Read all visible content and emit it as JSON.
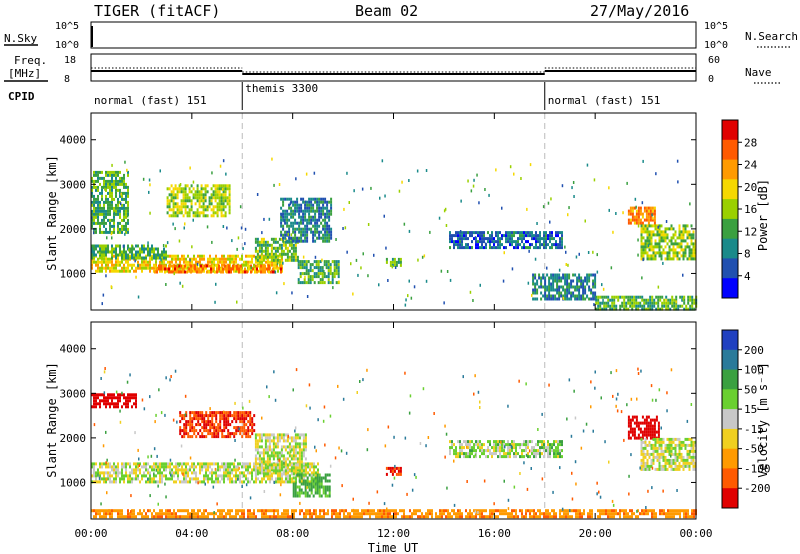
{
  "header": {
    "title": "TIGER (fitACF)",
    "beam": "Beam 02",
    "date": "27/May/2016"
  },
  "top_panels": {
    "nsky_label": "N.Sky",
    "nsky_ticks": [
      "10^5",
      "10^0"
    ],
    "nsearch_label": "N.Search",
    "nsearch_ticks": [
      "10^5",
      "10^0"
    ],
    "freq_label": "Freq.",
    "freq_unit": "[MHz]",
    "freq_ticks": [
      "18",
      "8"
    ],
    "nave_label": "Nave",
    "nave_ticks": [
      "60",
      "0"
    ],
    "cpid_label": "CPID",
    "modes": [
      {
        "label": "normal (fast) 151",
        "start": 0,
        "end": 6
      },
      {
        "label": "themis 3300",
        "start": 6,
        "end": 18
      },
      {
        "label": "normal (fast) 151",
        "start": 18,
        "end": 24
      }
    ]
  },
  "power_legend": {
    "title": "Power [dB]",
    "ticks": [
      "28",
      "24",
      "20",
      "16",
      "12",
      "8",
      "4"
    ],
    "colors": [
      "#e00000",
      "#ff5a00",
      "#ff9a00",
      "#f5d800",
      "#9ad000",
      "#3aa040",
      "#1a8a8a",
      "#2050b0",
      "#0000ff"
    ]
  },
  "velocity_legend": {
    "title": "Velocity [m s⁻¹]",
    "ticks": [
      "200",
      "100",
      "50",
      "15",
      "-15",
      "-50",
      "-100",
      "-200"
    ],
    "colors": [
      "#2040c0",
      "#2a7a9a",
      "#3aa040",
      "#6ad030",
      "#c8c8c8",
      "#f0d020",
      "#ff9a00",
      "#ff5a00",
      "#e00000"
    ]
  },
  "axes": {
    "ylabel": "Slant Range [km]",
    "yticks": [
      "4000",
      "3000",
      "2000",
      "1000"
    ],
    "xticks": [
      "00:00",
      "04:00",
      "08:00",
      "12:00",
      "16:00",
      "20:00",
      "00:00"
    ],
    "xlabel": "Time UT"
  },
  "chart_data": [
    {
      "type": "heatmap",
      "name": "Power",
      "x_range_hours": [
        0,
        24
      ],
      "y_range_km": [
        180,
        4600
      ],
      "color_range_db": [
        0,
        32
      ],
      "mode_change_hours": [
        6,
        18
      ],
      "regions": [
        {
          "t0": 0.0,
          "t1": 7.6,
          "r0": 1080,
          "r1": 1420,
          "value": 20
        },
        {
          "t0": 2.5,
          "t1": 7.5,
          "r0": 1000,
          "r1": 1200,
          "value": 26
        },
        {
          "t0": 0.0,
          "t1": 3.0,
          "r0": 1350,
          "r1": 1650,
          "value": 12
        },
        {
          "t0": 0.0,
          "t1": 1.5,
          "r0": 1950,
          "r1": 3300,
          "value": 12
        },
        {
          "t0": 3.0,
          "t1": 5.5,
          "r0": 2300,
          "r1": 3000,
          "value": 16
        },
        {
          "t0": 6.5,
          "t1": 8.2,
          "r0": 1300,
          "r1": 1800,
          "value": 14
        },
        {
          "t0": 8.2,
          "t1": 9.8,
          "r0": 800,
          "r1": 1300,
          "value": 12
        },
        {
          "t0": 7.5,
          "t1": 9.5,
          "r0": 1700,
          "r1": 2700,
          "value": 8
        },
        {
          "t0": 11.7,
          "t1": 12.3,
          "r0": 1200,
          "r1": 1350,
          "value": 12
        },
        {
          "t0": 14.2,
          "t1": 18.7,
          "r0": 1600,
          "r1": 1950,
          "value": 6
        },
        {
          "t0": 17.5,
          "t1": 20.0,
          "r0": 400,
          "r1": 1000,
          "value": 8
        },
        {
          "t0": 21.3,
          "t1": 22.4,
          "r0": 2100,
          "r1": 2500,
          "value": 25
        },
        {
          "t0": 21.8,
          "t1": 24.0,
          "r0": 1300,
          "r1": 2100,
          "value": 16
        },
        {
          "t0": 20.0,
          "t1": 24.0,
          "r0": 200,
          "r1": 500,
          "value": 12
        }
      ]
    },
    {
      "type": "heatmap",
      "name": "Velocity",
      "x_range_hours": [
        0,
        24
      ],
      "y_range_km": [
        180,
        4600
      ],
      "color_range_ms": [
        -200,
        200
      ],
      "mode_change_hours": [
        6,
        18
      ],
      "regions": [
        {
          "t0": 0.0,
          "t1": 9.0,
          "r0": 1000,
          "r1": 1450,
          "value": 0
        },
        {
          "t0": 0.0,
          "t1": 1.8,
          "r0": 2700,
          "r1": 3000,
          "value": -250
        },
        {
          "t0": 3.5,
          "t1": 6.5,
          "r0": 2000,
          "r1": 2600,
          "value": -150
        },
        {
          "t0": 6.5,
          "t1": 8.5,
          "r0": 1200,
          "r1": 2100,
          "value": 0
        },
        {
          "t0": 8.0,
          "t1": 9.5,
          "r0": 700,
          "r1": 1200,
          "value": 40
        },
        {
          "t0": 11.7,
          "t1": 12.3,
          "r0": 1200,
          "r1": 1350,
          "value": -160
        },
        {
          "t0": 14.2,
          "t1": 18.7,
          "r0": 1550,
          "r1": 1950,
          "value": 10
        },
        {
          "t0": 21.3,
          "t1": 22.5,
          "r0": 2000,
          "r1": 2500,
          "value": -220
        },
        {
          "t0": 21.8,
          "t1": 24.0,
          "r0": 1300,
          "r1": 2000,
          "value": 0
        },
        {
          "t0": 0.0,
          "t1": 24.0,
          "r0": 200,
          "r1": 400,
          "value": -60
        }
      ]
    }
  ]
}
